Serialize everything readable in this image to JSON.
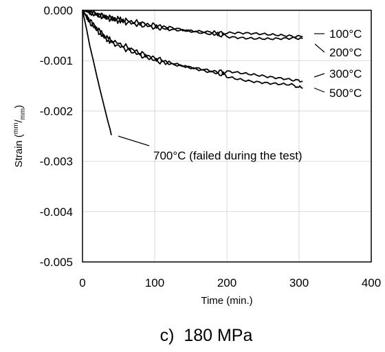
{
  "chart_data": {
    "type": "line",
    "xlabel": "Time (min.)",
    "ylabel_prefix": "Strain (",
    "ylabel_num": "mm",
    "ylabel_sep": "/",
    "ylabel_den": "mm",
    "ylabel_suffix": ")",
    "caption": "c)  180 MPa",
    "xlim": [
      0,
      400
    ],
    "ylim": [
      -0.005,
      0
    ],
    "x_ticks": [
      0,
      100,
      200,
      300,
      400
    ],
    "x_tick_labels": [
      "0",
      "100",
      "200",
      "300",
      "400"
    ],
    "y_ticks": [
      0,
      -0.001,
      -0.002,
      -0.003,
      -0.004,
      -0.005
    ],
    "y_tick_labels": [
      "0.000",
      "-0.001",
      "-0.002",
      "-0.003",
      "-0.004",
      "-0.005"
    ],
    "grid": true,
    "series": [
      {
        "name": "100°C",
        "x": [
          0,
          10,
          20,
          30,
          40,
          50,
          60,
          80,
          100,
          120,
          150,
          180,
          200,
          230,
          260,
          290,
          305
        ],
        "y": [
          0,
          -3e-05,
          -7e-05,
          -0.00011,
          -0.00015,
          -0.00017,
          -0.0002,
          -0.00025,
          -0.0003,
          -0.00034,
          -0.0004,
          -0.00044,
          -0.00047,
          -0.00049,
          -0.00051,
          -0.00052,
          -0.00052
        ]
      },
      {
        "name": "200°C",
        "x": [
          0,
          10,
          20,
          30,
          40,
          50,
          60,
          80,
          100,
          120,
          150,
          180,
          200,
          230,
          260,
          290,
          305
        ],
        "y": [
          0,
          -5e-05,
          -0.0001,
          -0.00014,
          -0.00018,
          -0.00021,
          -0.00024,
          -0.00029,
          -0.00034,
          -0.00038,
          -0.00043,
          -0.00047,
          -0.0005,
          -0.00052,
          -0.00054,
          -0.00055,
          -0.00056
        ]
      },
      {
        "name": "300°C",
        "x": [
          0,
          5,
          10,
          20,
          30,
          40,
          60,
          80,
          100,
          120,
          150,
          180,
          200,
          230,
          260,
          290,
          305
        ],
        "y": [
          0,
          -0.0001,
          -0.0002,
          -0.00035,
          -0.0005,
          -0.0006,
          -0.00072,
          -0.00085,
          -0.00095,
          -0.00103,
          -0.00112,
          -0.0012,
          -0.00124,
          -0.0013,
          -0.00135,
          -0.00138,
          -0.00141
        ]
      },
      {
        "name": "500°C",
        "x": [
          0,
          5,
          10,
          20,
          30,
          40,
          60,
          80,
          100,
          120,
          150,
          180,
          200,
          230,
          260,
          290,
          305
        ],
        "y": [
          0,
          -0.00012,
          -0.00024,
          -0.0004,
          -0.00054,
          -0.00064,
          -0.00077,
          -0.00089,
          -0.00099,
          -0.00107,
          -0.00116,
          -0.00124,
          -0.00129,
          -0.00137,
          -0.00143,
          -0.00148,
          -0.00155
        ]
      },
      {
        "name": "700°C (failed during the test)",
        "x": [
          0,
          3,
          6,
          10,
          15,
          20,
          25,
          30,
          35,
          38,
          40
        ],
        "y": [
          0,
          -0.0002,
          -0.0004,
          -0.0007,
          -0.001,
          -0.00132,
          -0.00162,
          -0.00191,
          -0.0022,
          -0.00235,
          -0.00248
        ]
      }
    ],
    "annotations": [
      {
        "text": "100°C"
      },
      {
        "text": "200°C"
      },
      {
        "text": "300°C"
      },
      {
        "text": "500°C"
      },
      {
        "text": "700°C (failed during the test)"
      }
    ]
  }
}
